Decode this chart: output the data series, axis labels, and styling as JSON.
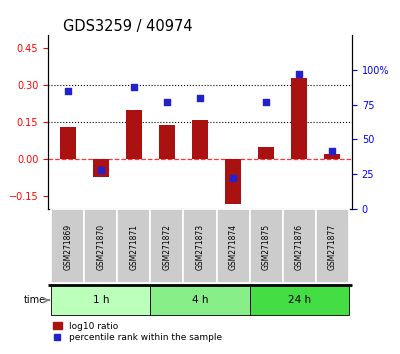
{
  "title": "GDS3259 / 40974",
  "samples": [
    "GSM271869",
    "GSM271870",
    "GSM271871",
    "GSM271872",
    "GSM271873",
    "GSM271874",
    "GSM271875",
    "GSM271876",
    "GSM271877"
  ],
  "log10_ratio": [
    0.13,
    -0.07,
    0.2,
    0.14,
    0.16,
    -0.18,
    0.05,
    0.33,
    0.02
  ],
  "percentile_rank": [
    85,
    28,
    88,
    77,
    80,
    22,
    77,
    97,
    42
  ],
  "groups": [
    {
      "label": "1 h",
      "indices": [
        0,
        1,
        2
      ],
      "color": "#bbffbb"
    },
    {
      "label": "4 h",
      "indices": [
        3,
        4,
        5
      ],
      "color": "#88ee88"
    },
    {
      "label": "24 h",
      "indices": [
        6,
        7,
        8
      ],
      "color": "#44dd44"
    }
  ],
  "ylim_left": [
    -0.2,
    0.5
  ],
  "ylim_right": [
    0,
    125
  ],
  "yticks_left": [
    -0.15,
    0.0,
    0.15,
    0.3,
    0.45
  ],
  "yticks_right": [
    0,
    25,
    50,
    75,
    100
  ],
  "hlines_dotted": [
    0.15,
    0.3
  ],
  "bar_color": "#aa1111",
  "dot_color": "#2222cc",
  "bar_width": 0.5,
  "legend_bar_label": "log10 ratio",
  "legend_dot_label": "percentile rank within the sample",
  "time_label": "time",
  "bg_color": "#ffffff",
  "plot_bg": "#ffffff",
  "label_bg": "#cccccc"
}
